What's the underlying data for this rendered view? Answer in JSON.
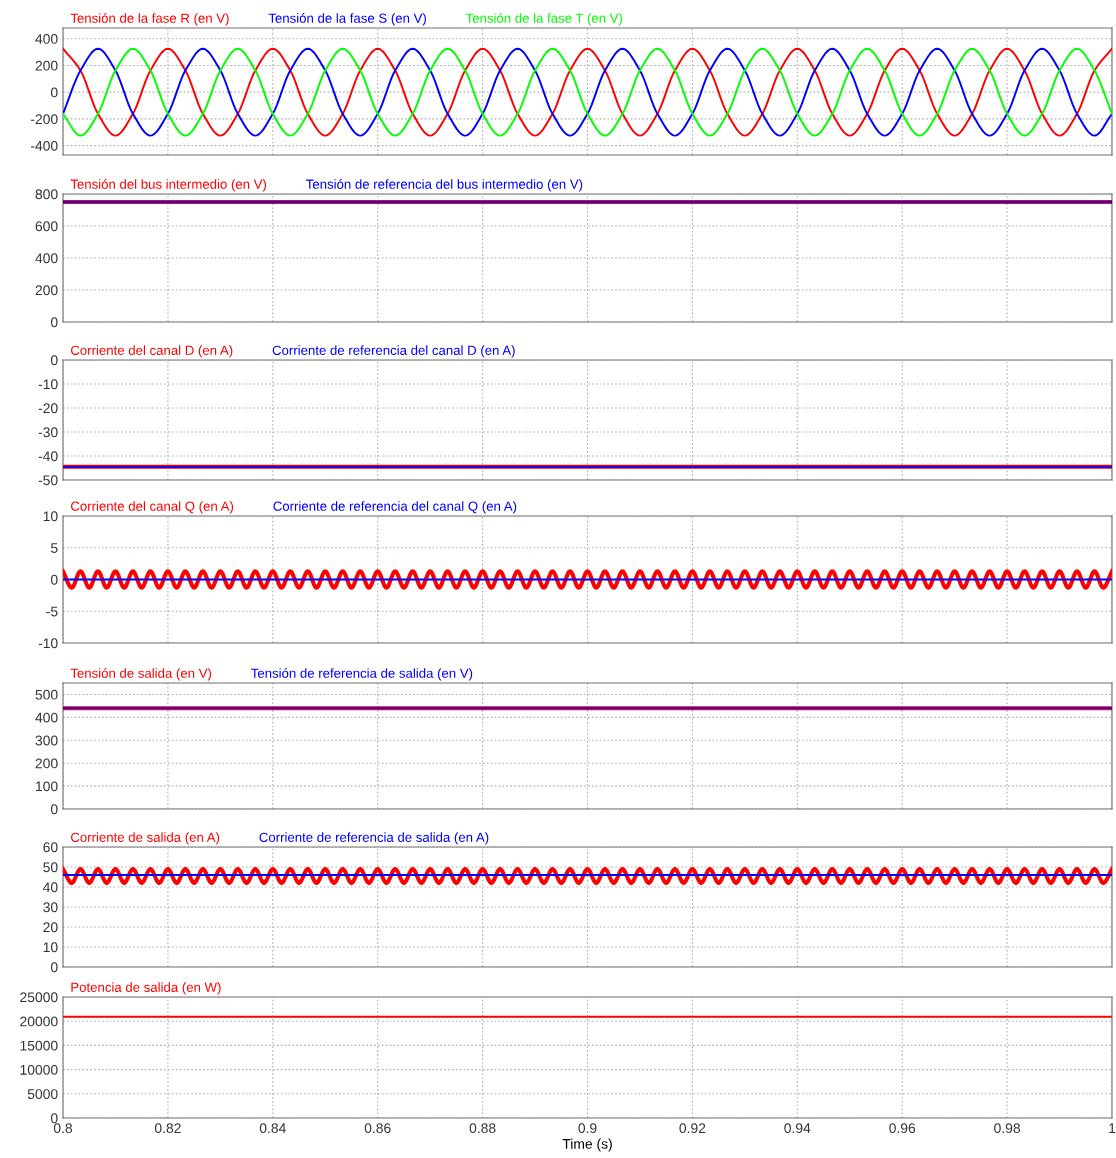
{
  "chart_data": [
    {
      "type": "line",
      "xlim": [
        0.8,
        1
      ],
      "xticks": [
        0.8,
        0.82,
        0.84,
        0.86,
        0.88,
        0.9,
        0.92,
        0.94,
        0.96,
        0.98,
        1
      ],
      "ylim": [
        -470,
        480
      ],
      "yticks": [
        -400,
        -200,
        0,
        200,
        400
      ],
      "grid": true,
      "legend": "top",
      "tick_labels": "y",
      "x": [
        0.8,
        0.80333,
        0.80667,
        0.81,
        0.81333,
        0.81667,
        0.82,
        0.82333,
        0.82667,
        0.83,
        0.83333,
        0.83667,
        0.84,
        0.84333,
        0.84667,
        0.85,
        0.85333,
        0.85667,
        0.86,
        0.86333,
        0.86667,
        0.87,
        0.87333,
        0.87667,
        0.88,
        0.88333,
        0.88667,
        0.89,
        0.89333,
        0.89667,
        0.9,
        0.90333,
        0.90667,
        0.91,
        0.91333,
        0.91667,
        0.92,
        0.92333,
        0.92667,
        0.93,
        0.93333,
        0.93667,
        0.94,
        0.94333,
        0.94667,
        0.95,
        0.95333,
        0.95667,
        0.96,
        0.96333,
        0.96667,
        0.97,
        0.97333,
        0.97667,
        0.98,
        0.98333,
        0.98667,
        0.99,
        0.99333,
        0.99667,
        1
      ],
      "series": [
        {
          "name": "Tensión de la fase R (en V)",
          "color": "#ff0000",
          "values": [
            325,
            162,
            -162,
            -325,
            -162,
            162,
            325,
            162,
            -162,
            -325,
            -162,
            162,
            325,
            162,
            -162,
            -325,
            -162,
            162,
            325,
            162,
            -162,
            -325,
            -162,
            162,
            325,
            162,
            -162,
            -325,
            -162,
            162,
            325,
            162,
            -162,
            -325,
            -162,
            162,
            325,
            162,
            -162,
            -325,
            -162,
            162,
            325,
            162,
            -162,
            -325,
            -162,
            162,
            325,
            162,
            -162,
            -325,
            -162,
            162,
            325,
            162,
            -162,
            -325,
            -162,
            162,
            325
          ]
        },
        {
          "name": "Tensión de la fase S (en V)",
          "color": "#0000ff",
          "values": [
            -162,
            162,
            325,
            162,
            -162,
            -325,
            -162,
            162,
            325,
            162,
            -162,
            -325,
            -162,
            162,
            325,
            162,
            -162,
            -325,
            -162,
            162,
            325,
            162,
            -162,
            -325,
            -162,
            162,
            325,
            162,
            -162,
            -325,
            -162,
            162,
            325,
            162,
            -162,
            -325,
            -162,
            162,
            325,
            162,
            -162,
            -325,
            -162,
            162,
            325,
            162,
            -162,
            -325,
            -162,
            162,
            325,
            162,
            -162,
            -325,
            -162,
            162,
            325,
            162,
            -162,
            -325,
            -162
          ]
        },
        {
          "name": "Tensión de la fase T (en V)",
          "color": "#00ff00",
          "values": [
            -162,
            -325,
            -162,
            162,
            325,
            162,
            -162,
            -325,
            -162,
            162,
            325,
            162,
            -162,
            -325,
            -162,
            162,
            325,
            162,
            -162,
            -325,
            -162,
            162,
            325,
            162,
            -162,
            -325,
            -162,
            162,
            325,
            162,
            -162,
            -325,
            -162,
            162,
            325,
            162,
            -162,
            -325,
            -162,
            162,
            325,
            162,
            -162,
            -325,
            -162,
            162,
            325,
            162,
            -162,
            -325,
            -162,
            162,
            325,
            162,
            -162,
            -325,
            -162,
            162,
            325,
            162,
            -162
          ]
        }
      ]
    },
    {
      "type": "line",
      "xlim": [
        0.8,
        1
      ],
      "xticks": [
        0.8,
        0.82,
        0.84,
        0.86,
        0.88,
        0.9,
        0.92,
        0.94,
        0.96,
        0.98,
        1
      ],
      "ylim": [
        0,
        800
      ],
      "yticks": [
        0,
        200,
        400,
        600,
        800
      ],
      "grid": true,
      "legend": "top",
      "tick_labels": "y",
      "series": [
        {
          "name": "Tensión del bus intermedio (en V)",
          "color": "#ff0000",
          "x": [
            0.8,
            1
          ],
          "values": [
            750,
            750
          ]
        },
        {
          "name": "Tensión de referencia del bus intermedio (en V)",
          "color": "#0000ff",
          "x": [
            0.8,
            1
          ],
          "values": [
            750,
            750
          ]
        }
      ]
    },
    {
      "type": "line",
      "xlim": [
        0.8,
        1
      ],
      "xticks": [
        0.8,
        0.82,
        0.84,
        0.86,
        0.88,
        0.9,
        0.92,
        0.94,
        0.96,
        0.98,
        1
      ],
      "ylim": [
        -50,
        0
      ],
      "yticks": [
        -50,
        -40,
        -30,
        -20,
        -10,
        0
      ],
      "grid": true,
      "legend": "top",
      "tick_labels": "y",
      "series": [
        {
          "name": "Corriente del canal D (en A)",
          "color": "#ff0000",
          "x": [
            0.8,
            1
          ],
          "values": [
            -44.5,
            -44.5
          ]
        },
        {
          "name": "Corriente de referencia del canal D (en A)",
          "color": "#0000ff",
          "x": [
            0.8,
            1
          ],
          "values": [
            -44.5,
            -44.5
          ]
        }
      ]
    },
    {
      "type": "line",
      "xlim": [
        0.8,
        1
      ],
      "xticks": [
        0.8,
        0.82,
        0.84,
        0.86,
        0.88,
        0.9,
        0.92,
        0.94,
        0.96,
        0.98,
        1
      ],
      "ylim": [
        -10,
        10
      ],
      "yticks": [
        -10,
        -5,
        0,
        5,
        10
      ],
      "grid": true,
      "legend": "top",
      "tick_labels": "y",
      "series": [
        {
          "name": "Corriente del canal Q (en A)",
          "color": "#ff0000",
          "x": [
            0.8,
            0.80167,
            0.80333,
            0.805,
            0.80667,
            0.80833,
            0.81,
            0.81167,
            0.81333,
            0.815,
            0.81667,
            0.81833,
            0.82,
            0.82167,
            0.82333,
            0.825,
            0.82667,
            0.82833,
            0.83,
            0.83167,
            0.83333,
            0.835,
            0.83667,
            0.83833,
            0.84,
            0.84167,
            0.84333,
            0.845,
            0.84667,
            0.84833,
            0.85,
            0.85167,
            0.85333,
            0.855,
            0.85667,
            0.85833,
            0.86,
            0.86167,
            0.86333,
            0.865,
            0.86667,
            0.86833,
            0.87,
            0.87167,
            0.87333,
            0.875,
            0.87667,
            0.87833,
            0.88,
            0.88167,
            0.88333,
            0.885,
            0.88667,
            0.88833,
            0.89,
            0.89167,
            0.89333,
            0.895,
            0.89667,
            0.89833,
            0.9,
            0.90167,
            0.90333,
            0.905,
            0.90667,
            0.90833,
            0.91,
            0.91167,
            0.91333,
            0.915,
            0.91667,
            0.91833,
            0.92,
            0.92167,
            0.92333,
            0.925,
            0.92667,
            0.92833,
            0.93,
            0.93167,
            0.93333,
            0.935,
            0.93667,
            0.93833,
            0.94,
            0.94167,
            0.94333,
            0.945,
            0.94667,
            0.94833,
            0.95,
            0.95167,
            0.95333,
            0.955,
            0.95667,
            0.95833,
            0.96,
            0.96167,
            0.96333,
            0.965,
            0.96667,
            0.96833,
            0.97,
            0.97167,
            0.97333,
            0.975,
            0.97667,
            0.97833,
            0.98,
            0.98167,
            0.98333,
            0.985,
            0.98667,
            0.98833,
            0.99,
            0.99167,
            0.99333,
            0.995,
            0.99667,
            0.99833,
            1
          ],
          "values": [
            1.3,
            -1.3,
            1.3,
            -1.3,
            1.3,
            -1.3,
            1.3,
            -1.3,
            1.3,
            -1.3,
            1.3,
            -1.3,
            1.3,
            -1.3,
            1.3,
            -1.3,
            1.3,
            -1.3,
            1.3,
            -1.3,
            1.3,
            -1.3,
            1.3,
            -1.3,
            1.3,
            -1.3,
            1.3,
            -1.3,
            1.3,
            -1.3,
            1.3,
            -1.3,
            1.3,
            -1.3,
            1.3,
            -1.3,
            1.3,
            -1.3,
            1.3,
            -1.3,
            1.3,
            -1.3,
            1.3,
            -1.3,
            1.3,
            -1.3,
            1.3,
            -1.3,
            1.3,
            -1.3,
            1.3,
            -1.3,
            1.3,
            -1.3,
            1.3,
            -1.3,
            1.3,
            -1.3,
            1.3,
            -1.3,
            1.3,
            -1.3,
            1.3,
            -1.3,
            1.3,
            -1.3,
            1.3,
            -1.3,
            1.3,
            -1.3,
            1.3,
            -1.3,
            1.3,
            -1.3,
            1.3,
            -1.3,
            1.3,
            -1.3,
            1.3,
            -1.3,
            1.3,
            -1.3,
            1.3,
            -1.3,
            1.3,
            -1.3,
            1.3,
            -1.3,
            1.3,
            -1.3,
            1.3,
            -1.3,
            1.3,
            -1.3,
            1.3,
            -1.3,
            1.3,
            -1.3,
            1.3,
            -1.3,
            1.3,
            -1.3,
            1.3,
            -1.3,
            1.3,
            -1.3,
            1.3,
            -1.3,
            1.3,
            -1.3,
            1.3,
            -1.3,
            1.3,
            -1.3,
            1.3,
            -1.3,
            1.3,
            -1.3,
            1.3,
            -1.3,
            1.3
          ]
        },
        {
          "name": "Corriente de referencia del canal Q (en A)",
          "color": "#0000ff",
          "x": [
            0.8,
            1
          ],
          "values": [
            0,
            0
          ]
        }
      ]
    },
    {
      "type": "line",
      "xlim": [
        0.8,
        1
      ],
      "xticks": [
        0.8,
        0.82,
        0.84,
        0.86,
        0.88,
        0.9,
        0.92,
        0.94,
        0.96,
        0.98,
        1
      ],
      "ylim": [
        0,
        550
      ],
      "yticks": [
        0,
        100,
        200,
        300,
        400,
        500
      ],
      "grid": true,
      "legend": "top",
      "tick_labels": "y",
      "series": [
        {
          "name": "Tensión de salida (en V)",
          "color": "#ff0000",
          "x": [
            0.8,
            1
          ],
          "values": [
            440,
            440
          ]
        },
        {
          "name": "Tensión de referencia de salida (en V)",
          "color": "#0000ff",
          "x": [
            0.8,
            1
          ],
          "values": [
            440,
            440
          ]
        }
      ]
    },
    {
      "type": "line",
      "xlim": [
        0.8,
        1
      ],
      "xticks": [
        0.8,
        0.82,
        0.84,
        0.86,
        0.88,
        0.9,
        0.92,
        0.94,
        0.96,
        0.98,
        1
      ],
      "ylim": [
        0,
        60
      ],
      "yticks": [
        0,
        10,
        20,
        30,
        40,
        50,
        60
      ],
      "grid": true,
      "legend": "top",
      "tick_labels": "y",
      "series": [
        {
          "name": "Corriente de salida (en A)",
          "color": "#ff0000",
          "x": [
            0.8,
            0.80167,
            0.80333,
            0.805,
            0.80667,
            0.80833,
            0.81,
            0.81167,
            0.81333,
            0.815,
            0.81667,
            0.81833,
            0.82,
            0.82167,
            0.82333,
            0.825,
            0.82667,
            0.82833,
            0.83,
            0.83167,
            0.83333,
            0.835,
            0.83667,
            0.83833,
            0.84,
            0.84167,
            0.84333,
            0.845,
            0.84667,
            0.84833,
            0.85,
            0.85167,
            0.85333,
            0.855,
            0.85667,
            0.85833,
            0.86,
            0.86167,
            0.86333,
            0.865,
            0.86667,
            0.86833,
            0.87,
            0.87167,
            0.87333,
            0.875,
            0.87667,
            0.87833,
            0.88,
            0.88167,
            0.88333,
            0.885,
            0.88667,
            0.88833,
            0.89,
            0.89167,
            0.89333,
            0.895,
            0.89667,
            0.89833,
            0.9,
            0.90167,
            0.90333,
            0.905,
            0.90667,
            0.90833,
            0.91,
            0.91167,
            0.91333,
            0.915,
            0.91667,
            0.91833,
            0.92,
            0.92167,
            0.92333,
            0.925,
            0.92667,
            0.92833,
            0.93,
            0.93167,
            0.93333,
            0.935,
            0.93667,
            0.93833,
            0.94,
            0.94167,
            0.94333,
            0.945,
            0.94667,
            0.94833,
            0.95,
            0.95167,
            0.95333,
            0.955,
            0.95667,
            0.95833,
            0.96,
            0.96167,
            0.96333,
            0.965,
            0.96667,
            0.96833,
            0.97,
            0.97167,
            0.97333,
            0.975,
            0.97667,
            0.97833,
            0.98,
            0.98167,
            0.98333,
            0.985,
            0.98667,
            0.98833,
            0.99,
            0.99167,
            0.99333,
            0.995,
            0.99667,
            0.99833,
            1
          ],
          "values": [
            49,
            42,
            49,
            42,
            49,
            42,
            49,
            42,
            49,
            42,
            49,
            42,
            49,
            42,
            49,
            42,
            49,
            42,
            49,
            42,
            49,
            42,
            49,
            42,
            49,
            42,
            49,
            42,
            49,
            42,
            49,
            42,
            49,
            42,
            49,
            42,
            49,
            42,
            49,
            42,
            49,
            42,
            49,
            42,
            49,
            42,
            49,
            42,
            49,
            42,
            49,
            42,
            49,
            42,
            49,
            42,
            49,
            42,
            49,
            42,
            49,
            42,
            49,
            42,
            49,
            42,
            49,
            42,
            49,
            42,
            49,
            42,
            49,
            42,
            49,
            42,
            49,
            42,
            49,
            42,
            49,
            42,
            49,
            42,
            49,
            42,
            49,
            42,
            49,
            42,
            49,
            42,
            49,
            42,
            49,
            42,
            49,
            42,
            49,
            42,
            49,
            42,
            49,
            42,
            49,
            42,
            49,
            42,
            49,
            42,
            49,
            42,
            49,
            42,
            49,
            42,
            49,
            42,
            49,
            42,
            49
          ]
        },
        {
          "name": "Corriente de referencia de salida (en A)",
          "color": "#0000ff",
          "x": [
            0.8,
            1
          ],
          "values": [
            46,
            46
          ]
        }
      ]
    },
    {
      "type": "line",
      "xlim": [
        0.8,
        1
      ],
      "xticks": [
        0.8,
        0.82,
        0.84,
        0.86,
        0.88,
        0.9,
        0.92,
        0.94,
        0.96,
        0.98,
        1
      ],
      "ylim": [
        0,
        25000
      ],
      "yticks": [
        0,
        5000,
        10000,
        15000,
        20000,
        25000
      ],
      "grid": true,
      "legend": "top",
      "xlabel": "Time (s)",
      "series": [
        {
          "name": "Potencia de salida (en W)",
          "color": "#ff0000",
          "x": [
            0.8,
            1
          ],
          "values": [
            20900,
            20900
          ]
        }
      ]
    }
  ]
}
